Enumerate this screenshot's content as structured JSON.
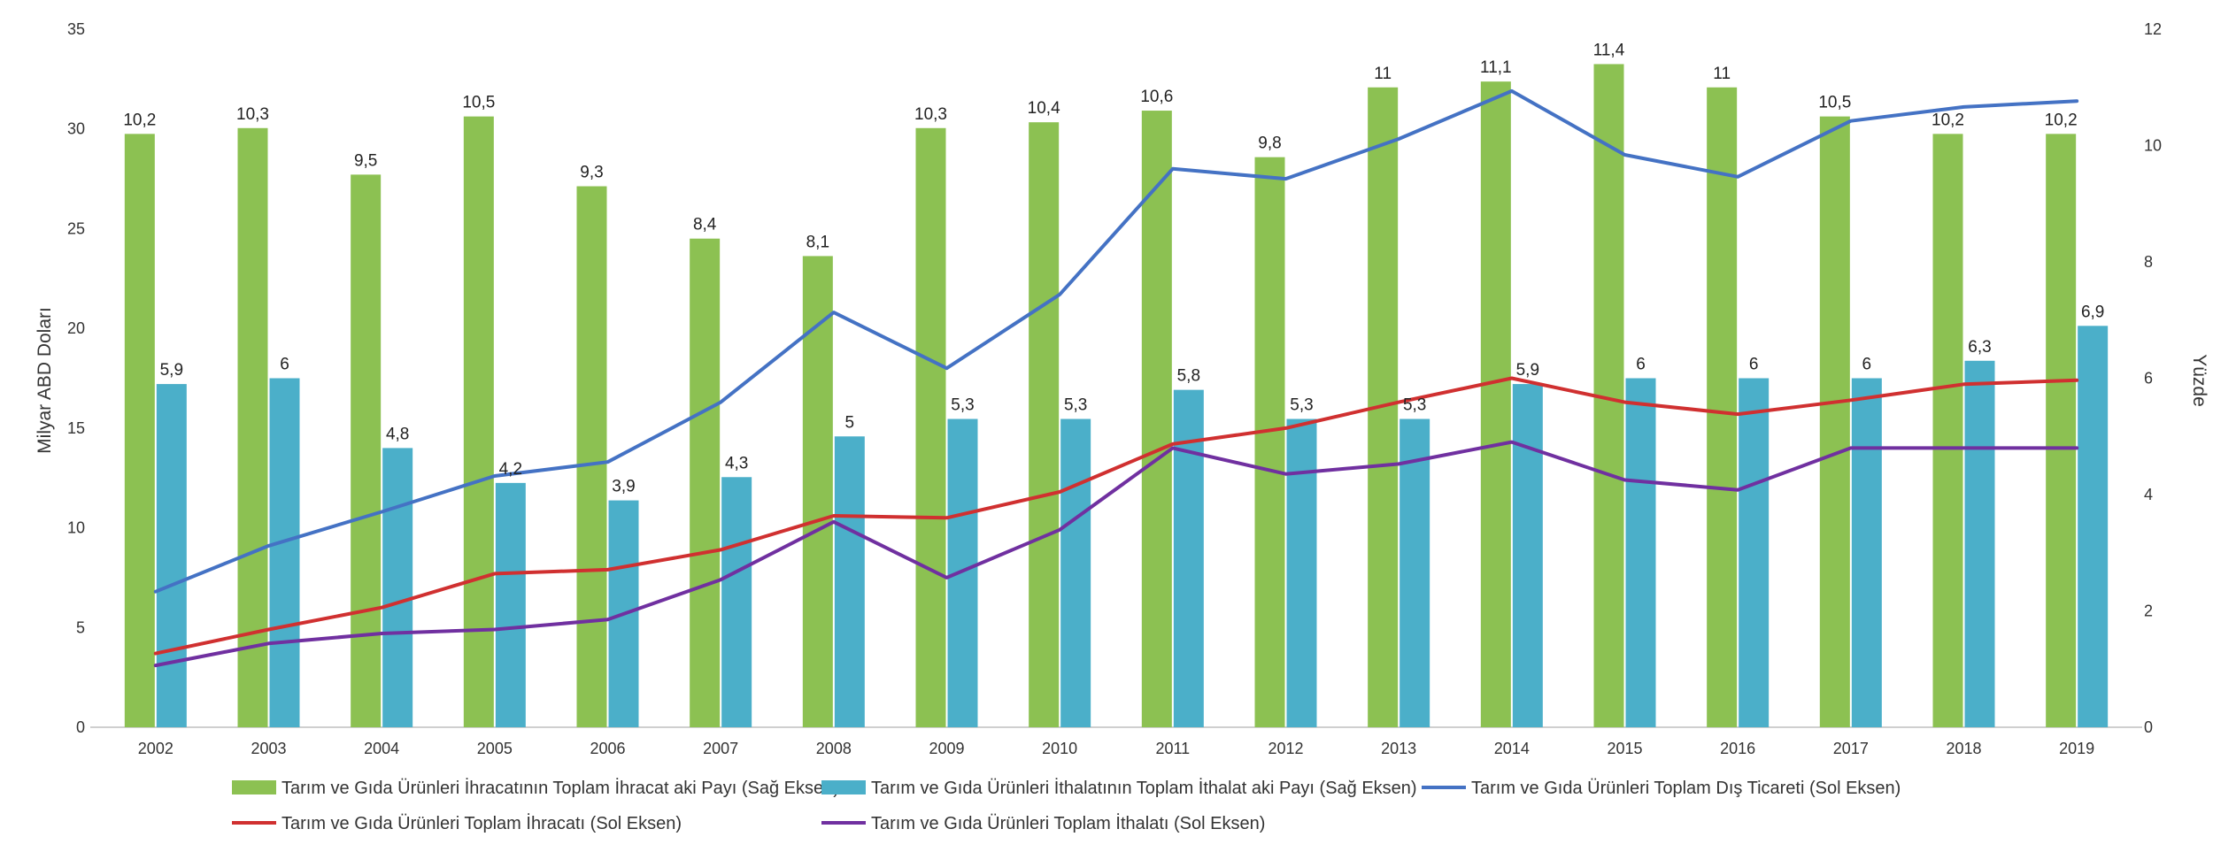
{
  "chart_data": {
    "type": "bar",
    "categories": [
      "2002",
      "2003",
      "2004",
      "2005",
      "2006",
      "2007",
      "2008",
      "2009",
      "2010",
      "2011",
      "2012",
      "2013",
      "2014",
      "2015",
      "2016",
      "2017",
      "2018",
      "2019"
    ],
    "ylabel_left": "Milyar ABD Doları",
    "ylabel_right": "Yüzde",
    "ylim_left": [
      0,
      35
    ],
    "yticks_left": [
      0,
      5,
      10,
      15,
      20,
      25,
      30,
      35
    ],
    "ylim_right": [
      0,
      12
    ],
    "yticks_right": [
      0,
      2,
      4,
      6,
      8,
      10,
      12
    ],
    "grid": "none",
    "legend_position": "bottom",
    "bar_series": [
      {
        "name": "Tarım ve Gıda Ürünleri İhracatının Toplam İhracat aki Payı (Sağ Eksen)",
        "axis": "right",
        "color": "#8cc152",
        "values": [
          10.2,
          10.3,
          9.5,
          10.5,
          9.3,
          8.4,
          8.1,
          10.3,
          10.4,
          10.6,
          9.8,
          11,
          11.1,
          11.4,
          11,
          10.5,
          10.2,
          10.2
        ],
        "labels": [
          "10,2",
          "10,3",
          "9,5",
          "10,5",
          "9,3",
          "8,4",
          "8,1",
          "10,3",
          "10,4",
          "10,6",
          "9,8",
          "11",
          "11,1",
          "11,4",
          "11",
          "10,5",
          "10,2",
          "10,2"
        ]
      },
      {
        "name": "Tarım ve Gıda Ürünleri İthalatının Toplam İthalat aki Payı (Sağ Eksen)",
        "axis": "right",
        "color": "#4bafc9",
        "values": [
          5.9,
          6,
          4.8,
          4.2,
          3.9,
          4.3,
          5,
          5.3,
          5.3,
          5.8,
          5.3,
          5.3,
          5.9,
          6,
          6,
          6,
          6.3,
          6.9
        ],
        "labels": [
          "5,9",
          "6",
          "4,8",
          "4,2",
          "3,9",
          "4,3",
          "5",
          "5,3",
          "5,3",
          "5,8",
          "5,3",
          "5,3",
          "5,9",
          "6",
          "6",
          "6",
          "6,3",
          "6,9"
        ]
      }
    ],
    "line_series": [
      {
        "name": "Tarım ve Gıda Ürünleri Toplam Dış Ticareti (Sol Eksen)",
        "axis": "left",
        "color": "#4472c4",
        "values": [
          6.8,
          9.1,
          10.8,
          12.6,
          13.3,
          16.3,
          20.8,
          18.0,
          21.7,
          28.0,
          27.5,
          29.5,
          31.9,
          28.7,
          27.6,
          30.4,
          31.1,
          31.4
        ]
      },
      {
        "name": "Tarım ve Gıda Ürünleri Toplam İhracatı (Sol Eksen)",
        "axis": "left",
        "color": "#d03030",
        "values": [
          3.7,
          4.9,
          6.0,
          7.7,
          7.9,
          8.9,
          10.6,
          10.5,
          11.8,
          14.2,
          15.0,
          16.3,
          17.5,
          16.3,
          15.7,
          16.4,
          17.2,
          17.4
        ]
      },
      {
        "name": "Tarım ve Gıda Ürünleri Toplam İthalatı (Sol Eksen)",
        "axis": "left",
        "color": "#7030a0",
        "values": [
          3.1,
          4.2,
          4.7,
          4.9,
          5.4,
          7.4,
          10.3,
          7.5,
          9.9,
          14.0,
          12.7,
          13.2,
          14.3,
          12.4,
          11.9,
          14.0,
          14.0,
          14.0
        ]
      }
    ]
  }
}
